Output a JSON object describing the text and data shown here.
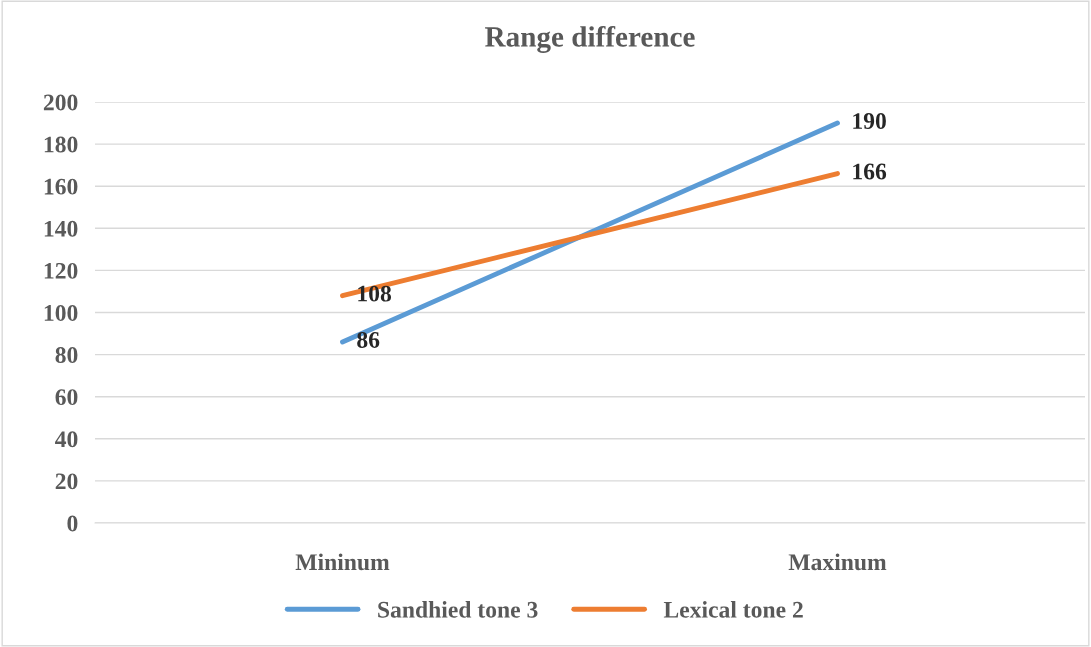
{
  "chart_data": {
    "type": "line",
    "title": "Range difference",
    "categories": [
      "Mininum",
      "Maxinum"
    ],
    "series": [
      {
        "name": "Sandhied tone 3",
        "color": "#5b9bd5",
        "values": [
          86,
          190
        ]
      },
      {
        "name": "Lexical tone 2",
        "color": "#ed7d31",
        "values": [
          108,
          166
        ]
      }
    ],
    "ylim": [
      0,
      200
    ],
    "yticks": [
      0,
      20,
      40,
      60,
      80,
      100,
      120,
      140,
      160,
      180,
      200
    ],
    "grid": "y",
    "legend": "bottom",
    "data_labels": true,
    "marker": "none",
    "line_style": "solid"
  }
}
